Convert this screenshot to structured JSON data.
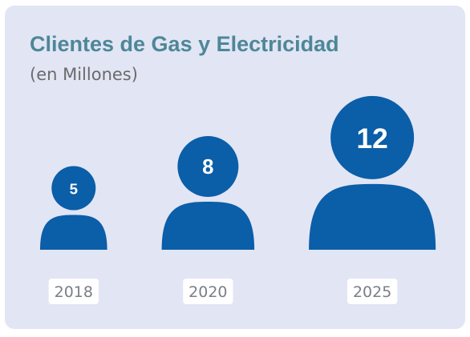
{
  "chart_data": {
    "type": "pictograph",
    "title": "Clientes de Gas y Electricidad",
    "subtitle": "(en Millones)",
    "categories": [
      "2018",
      "2020",
      "2025"
    ],
    "values": [
      5,
      8,
      12
    ],
    "color": "#0b5ea8"
  }
}
